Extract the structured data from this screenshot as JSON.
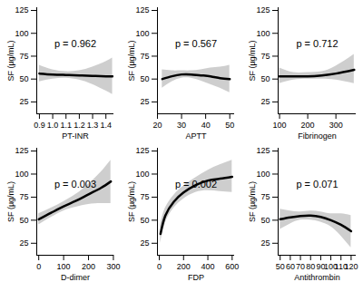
{
  "chart_data": [
    {
      "type": "line",
      "xlabel": "PT-INR",
      "ylabel": "SF (µg/mL)",
      "annotation": "p = 0.962",
      "color": "#000000",
      "grid": false,
      "x": [
        0.9,
        1.0,
        1.1,
        1.2,
        1.3,
        1.4,
        1.45
      ],
      "values": [
        56,
        55,
        54.5,
        54,
        53.5,
        53,
        53
      ],
      "lower": [
        47,
        50,
        51,
        49,
        44,
        37,
        33
      ],
      "upper": [
        65,
        60,
        58,
        59,
        63,
        69,
        73
      ],
      "xlim": [
        0.88,
        1.46
      ],
      "xticks": [
        0.9,
        {
          "value": 1,
          "label": "1.0"
        },
        1.1,
        1.2,
        1.3,
        1.4
      ],
      "ylim": [
        12,
        128
      ],
      "yticks": [
        25,
        50,
        75,
        100,
        125
      ]
    },
    {
      "type": "line",
      "xlabel": "APTT",
      "ylabel": "SF (µg/mL)",
      "annotation": "p = 0.567",
      "color": "#000000",
      "grid": false,
      "x": [
        22,
        26,
        30,
        34,
        38,
        42,
        46,
        50
      ],
      "values": [
        50,
        53,
        55,
        55,
        54,
        53,
        51,
        50
      ],
      "lower": [
        40,
        47,
        51,
        51,
        48,
        44,
        40,
        35
      ],
      "upper": [
        60,
        59,
        59,
        59,
        60,
        62,
        63,
        65
      ],
      "xlim": [
        20,
        52
      ],
      "xticks": [
        20,
        30,
        40,
        50
      ],
      "ylim": [
        12,
        128
      ],
      "yticks": [
        25,
        50,
        75,
        100,
        125
      ]
    },
    {
      "type": "line",
      "xlabel": "Fibrinogen",
      "ylabel": "SF (µg/mL)",
      "annotation": "p = 0.712",
      "color": "#000000",
      "grid": false,
      "x": [
        100,
        150,
        200,
        250,
        300,
        365
      ],
      "values": [
        53,
        53,
        53,
        54,
        56,
        60
      ],
      "lower": [
        45,
        49,
        50,
        50,
        49,
        45
      ],
      "upper": [
        62,
        57,
        57,
        58,
        64,
        77
      ],
      "xlim": [
        95,
        372
      ],
      "xticks": [
        100,
        200,
        300
      ],
      "ylim": [
        12,
        128
      ],
      "yticks": [
        25,
        50,
        75,
        100,
        125
      ]
    },
    {
      "type": "line",
      "xlabel": "D-dimer",
      "ylabel": "SF (µg/mL)",
      "annotation": "p = 0.003",
      "color": "#000000",
      "grid": false,
      "x": [
        0,
        50,
        100,
        150,
        200,
        250,
        290
      ],
      "values": [
        51,
        58,
        65,
        71,
        78,
        85,
        92
      ],
      "lower": [
        45,
        53,
        60,
        64,
        67,
        68,
        68
      ],
      "upper": [
        57,
        63,
        70,
        78,
        89,
        102,
        115
      ],
      "xlim": [
        -8,
        302
      ],
      "xticks": [
        0,
        100,
        200,
        300
      ],
      "ylim": [
        12,
        128
      ],
      "yticks": [
        25,
        50,
        75,
        100,
        125
      ]
    },
    {
      "type": "line",
      "xlabel": "FDP",
      "ylabel": "SF (µg/mL)",
      "annotation": "p = 0.002",
      "color": "#000000",
      "grid": false,
      "x": [
        10,
        50,
        120,
        200,
        300,
        400,
        500,
        600
      ],
      "values": [
        35,
        55,
        70,
        80,
        88,
        93,
        95,
        97
      ],
      "lower": [
        25,
        47,
        63,
        73,
        80,
        82,
        81,
        80
      ],
      "upper": [
        45,
        63,
        77,
        87,
        96,
        104,
        110,
        115
      ],
      "xlim": [
        -15,
        620
      ],
      "xticks": [
        0,
        200,
        400,
        600
      ],
      "ylim": [
        12,
        128
      ],
      "yticks": [
        25,
        50,
        75,
        100,
        125
      ]
    },
    {
      "type": "line",
      "xlabel": "Antithrombin",
      "ylabel": "SF (µg/mL)",
      "annotation": "p = 0.071",
      "color": "#000000",
      "grid": false,
      "x": [
        50,
        60,
        70,
        80,
        90,
        100,
        110,
        120
      ],
      "values": [
        51,
        53,
        54.5,
        55,
        53.5,
        50,
        45,
        38
      ],
      "lower": [
        40,
        46,
        50,
        50,
        48,
        43,
        33,
        20
      ],
      "upper": [
        62,
        60,
        59,
        60,
        59,
        57,
        57,
        55
      ],
      "xlim": [
        48,
        125
      ],
      "xticks": [
        50,
        60,
        70,
        80,
        90,
        100,
        110,
        120
      ],
      "ylim": [
        12,
        128
      ],
      "yticks": [
        25,
        50,
        75,
        100,
        125
      ]
    }
  ]
}
